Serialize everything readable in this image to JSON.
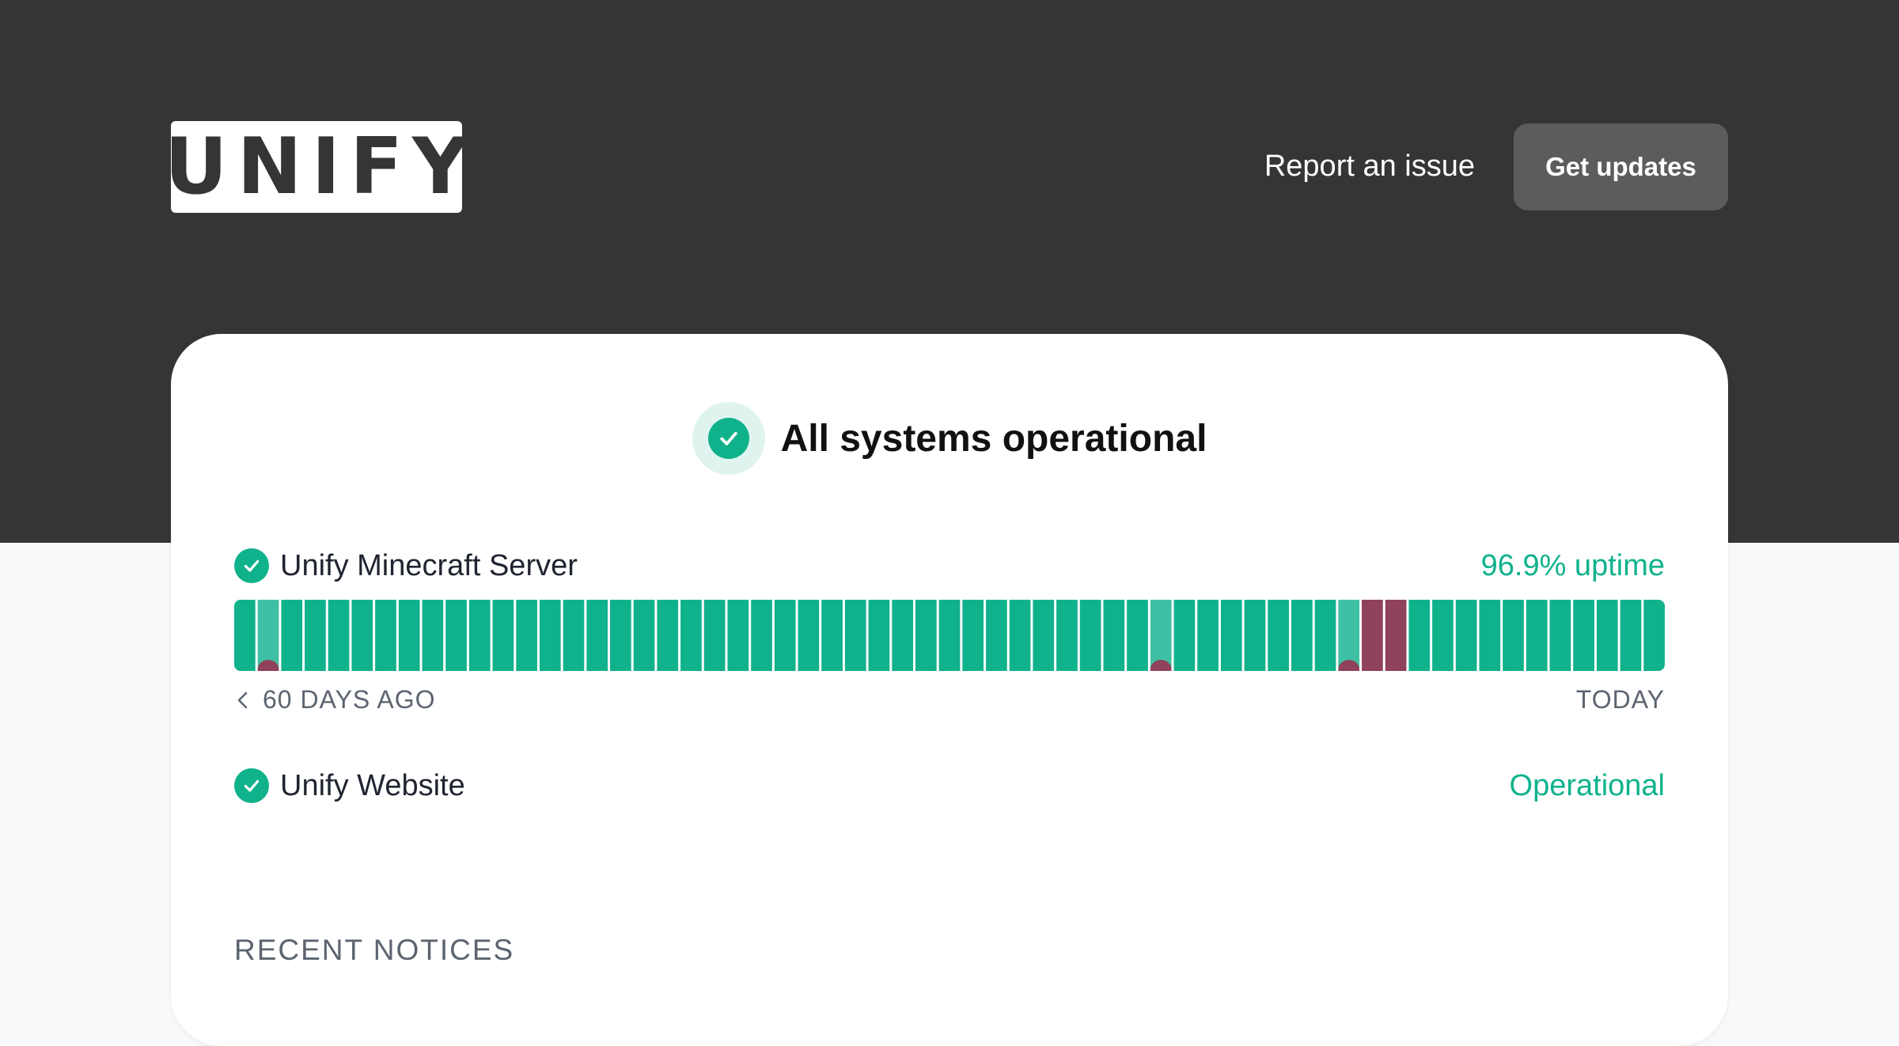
{
  "header": {
    "logo_text": "UNIFY",
    "report_link": "Report an issue",
    "updates_button": "Get updates"
  },
  "summary": {
    "status": "All systems operational"
  },
  "components": [
    {
      "name": "Unify Minecraft Server",
      "metric": "96.9% uptime",
      "bar": {
        "start_label": "60 DAYS AGO",
        "end_label": "TODAY",
        "days": [
          "ok",
          "partial",
          "ok",
          "ok",
          "ok",
          "ok",
          "ok",
          "ok",
          "ok",
          "ok",
          "ok",
          "ok",
          "ok",
          "ok",
          "ok",
          "ok",
          "ok",
          "ok",
          "ok",
          "ok",
          "ok",
          "ok",
          "ok",
          "ok",
          "ok",
          "ok",
          "ok",
          "ok",
          "ok",
          "ok",
          "ok",
          "ok",
          "ok",
          "ok",
          "ok",
          "ok",
          "ok",
          "ok",
          "ok",
          "partial",
          "ok",
          "ok",
          "ok",
          "ok",
          "ok",
          "ok",
          "ok",
          "partial",
          "outage",
          "outage",
          "ok",
          "ok",
          "ok",
          "ok",
          "ok",
          "ok",
          "ok",
          "ok",
          "ok",
          "ok",
          "ok"
        ]
      }
    },
    {
      "name": "Unify Website",
      "metric": "Operational"
    }
  ],
  "notices": {
    "heading": "RECENT NOTICES"
  },
  "colors": {
    "header_bg": "#353535",
    "operational": "#10b28c",
    "partial": "#3fc0a4",
    "outage": "#8f4259"
  }
}
